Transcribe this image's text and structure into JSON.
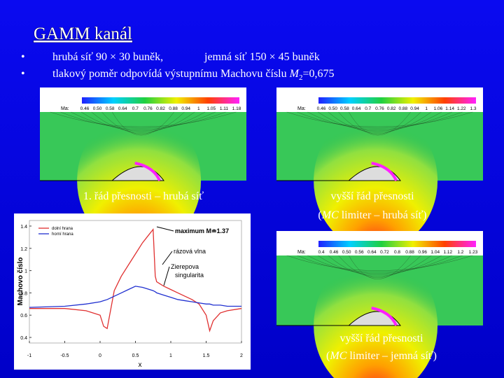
{
  "title": "GAMM kanál",
  "bullets": [
    {
      "parts": [
        "hrubá síť 90 × 30 buněk,",
        "jemná síť 150 × 45 buněk"
      ]
    },
    {
      "parts": [
        "tlakový poměr odpovídá výstupnímu Machovu číslu ",
        "M",
        "2",
        "=0,675"
      ]
    }
  ],
  "figures": [
    {
      "colorbar_label": "Ma:",
      "colorbar_ticks": [
        "0.46",
        "0.50",
        "0.58",
        "0.64",
        "0.7",
        "0.76",
        "0.82",
        "0.88",
        "0.94",
        "1",
        "1.05",
        "1.11",
        "1.18"
      ],
      "caption": [
        [
          "1. řád přesnosti – hrubá síť"
        ]
      ]
    },
    {
      "colorbar_label": "Ma:",
      "colorbar_ticks": [
        "0.46",
        "0.50",
        "0.58",
        "0.64",
        "0.7",
        "0.76",
        "0.82",
        "0.88",
        "0.94",
        "1",
        "1.06",
        "1.14",
        "1.22",
        "1.3"
      ],
      "caption": [
        [
          "vyšší řád přesnosti"
        ],
        [
          "(",
          "MC",
          " limiter – hrubá síť)"
        ]
      ]
    },
    {
      "colorbar_label": "Ma:",
      "colorbar_ticks": [
        "0.4",
        "0.46",
        "0.50",
        "0.56",
        "0.64",
        "0.72",
        "0.8",
        "0.88",
        "0.96",
        "1.04",
        "1.12",
        "1.2",
        "1.23"
      ],
      "caption": [
        [
          "vyšší řád přesnosti"
        ],
        [
          "(",
          "MC",
          " limiter – jemná síť)"
        ]
      ]
    }
  ],
  "chart_data": {
    "type": "line",
    "x_label": "x",
    "y_label": "Machovo číslo",
    "x": [
      -1,
      -0.5,
      -0.2,
      0,
      0.05,
      0.1,
      0.2,
      0.3,
      0.4,
      0.5,
      0.6,
      0.7,
      0.75,
      0.78,
      0.8,
      0.85,
      0.9,
      1,
      1.1,
      1.2,
      1.3,
      1.4,
      1.5,
      1.55,
      1.6,
      1.7,
      1.8,
      2
    ],
    "series": [
      {
        "name": "dolní hrana",
        "color": "#e03030",
        "values": [
          0.66,
          0.66,
          0.64,
          0.6,
          0.5,
          0.48,
          0.82,
          0.95,
          1.05,
          1.15,
          1.25,
          1.33,
          1.37,
          0.95,
          0.9,
          0.88,
          0.86,
          0.83,
          0.8,
          0.77,
          0.74,
          0.7,
          0.6,
          0.46,
          0.55,
          0.62,
          0.64,
          0.66
        ]
      },
      {
        "name": "horní hrana",
        "color": "#2030d0",
        "values": [
          0.67,
          0.68,
          0.7,
          0.72,
          0.73,
          0.74,
          0.77,
          0.8,
          0.83,
          0.86,
          0.85,
          0.83,
          0.82,
          0.81,
          0.8,
          0.79,
          0.78,
          0.76,
          0.74,
          0.73,
          0.72,
          0.71,
          0.7,
          0.7,
          0.69,
          0.69,
          0.68,
          0.68
        ]
      }
    ],
    "annotations": [
      "maximum M≐1.37",
      "rázová vlna",
      "Zierepova",
      "singularita"
    ],
    "xlim": [
      -1,
      2
    ],
    "xticks": [
      -1,
      -0.5,
      0,
      0.5,
      1,
      1.5,
      2
    ],
    "ylim": [
      0.35,
      1.45
    ],
    "yticks": [
      0.4,
      0.6,
      0.8,
      1,
      1.2,
      1.4
    ],
    "legend": "upper-left"
  }
}
